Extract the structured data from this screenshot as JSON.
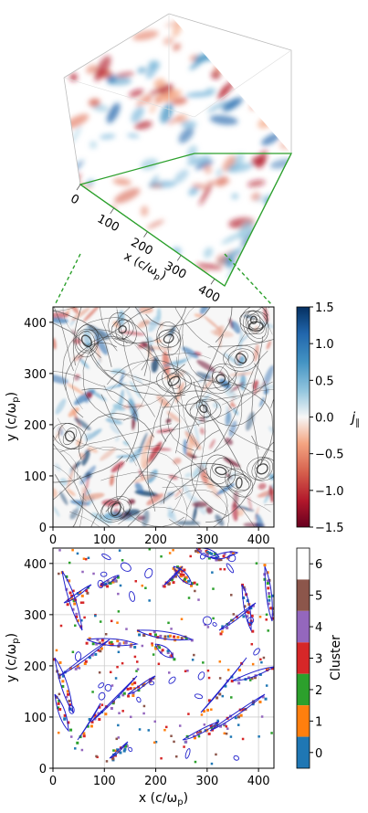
{
  "figure": {
    "cube": {
      "type": "3d-volume-render",
      "x_axis_label": "x (c/ωp)",
      "x_ticks": [
        "0",
        "100",
        "200",
        "300",
        "400"
      ],
      "slice_color": "#2ca02c"
    },
    "panel_middle": {
      "type": "heatmap",
      "title": "",
      "xlabel": "",
      "ylabel": "y (c/ωp)",
      "x_ticks": [
        "0",
        "100",
        "200",
        "300",
        "400"
      ],
      "y_ticks": [
        "0",
        "100",
        "200",
        "300",
        "400"
      ],
      "colorbar": {
        "label": "j∥",
        "min": -1.5,
        "max": 1.5,
        "ticks": [
          "1.5",
          "1.0",
          "0.5",
          "0.0",
          "−0.5",
          "−1.0",
          "−1.5"
        ],
        "colormap": "RdBu (red negative, blue positive)"
      }
    },
    "panel_bottom": {
      "type": "heatmap",
      "xlabel": "x (c/ωp)",
      "ylabel": "y (c/ωp)",
      "x_ticks": [
        "0",
        "100",
        "200",
        "300",
        "400"
      ],
      "y_ticks": [
        "0",
        "100",
        "200",
        "300",
        "400"
      ],
      "colorbar": {
        "label": "Cluster",
        "ticks": [
          "6",
          "5",
          "4",
          "3",
          "2",
          "1",
          "0"
        ],
        "colors": [
          "#ffffff",
          "#8c564b",
          "#9467bd",
          "#d62728",
          "#2ca02c",
          "#ff7f0e",
          "#1f77b4"
        ]
      }
    }
  },
  "chart_data": [
    {
      "type": "heatmap",
      "title": "",
      "ylabel": "y (c/ωp)",
      "xlim": [
        0,
        430
      ],
      "ylim": [
        0,
        430
      ],
      "colorbar_label": "j∥",
      "vmin": -1.5,
      "vmax": 1.5
    },
    {
      "type": "heatmap",
      "xlabel": "x (c/ωp)",
      "ylabel": "y (c/ωp)",
      "xlim": [
        0,
        430
      ],
      "ylim": [
        0,
        430
      ],
      "colorbar_label": "Cluster",
      "categories": [
        0,
        1,
        2,
        3,
        4,
        5,
        6
      ]
    }
  ]
}
